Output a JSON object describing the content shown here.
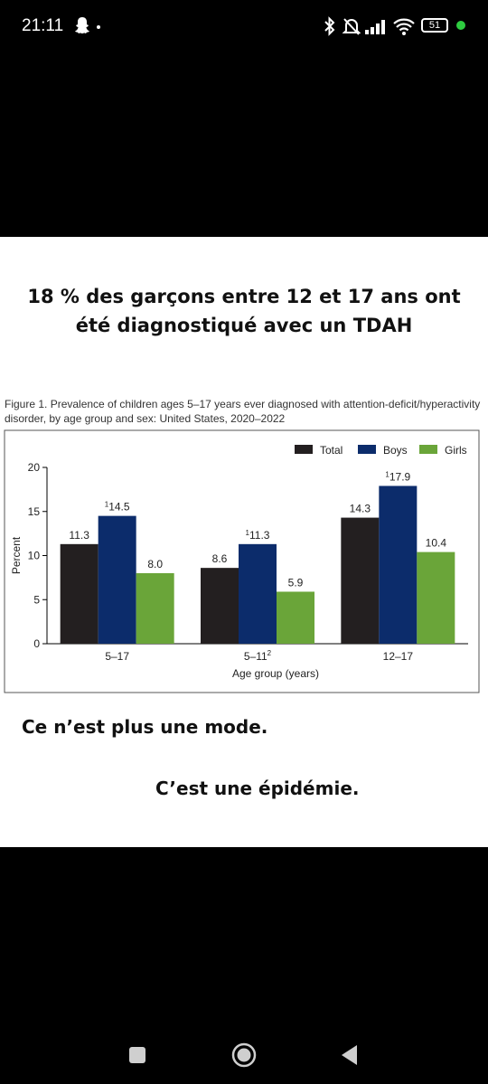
{
  "status_bar": {
    "time": "21:11",
    "battery": "51",
    "icons": [
      "snapchat-icon",
      "dot-icon",
      "bluetooth-icon",
      "mute-icon",
      "signal-icon",
      "wifi-icon",
      "battery-icon",
      "green-dot-icon"
    ]
  },
  "post": {
    "headline_line1": "18 % des garçons entre 12 et 17 ans ont",
    "headline_line2": "été diagnostiqué avec un TDAH",
    "caption_line1": "Figure 1. Prevalence of children ages 5–17 years ever diagnosed with attention-deficit/hyperactivity",
    "caption_line2": "disorder, by age group and sex: United States, 2020–2022",
    "text_line1": "Ce n’est plus une mode.",
    "text_line2": "C’est une épidémie."
  },
  "chart_data": {
    "type": "bar",
    "categories": [
      "5–17",
      "5–11",
      "12–17"
    ],
    "category_superscripts": [
      "",
      "2",
      ""
    ],
    "series": [
      {
        "name": "Total",
        "values": [
          11.3,
          8.6,
          14.3
        ],
        "color": "#231f20",
        "label_superscripts": [
          "",
          "",
          ""
        ]
      },
      {
        "name": "Boys",
        "values": [
          14.5,
          11.3,
          17.9
        ],
        "color": "#0c2c6b",
        "label_superscripts": [
          "1",
          "1",
          "1"
        ]
      },
      {
        "name": "Girls",
        "values": [
          8.0,
          5.9,
          10.4
        ],
        "color": "#6aa539",
        "label_superscripts": [
          "",
          "",
          ""
        ]
      }
    ],
    "xlabel": "Age group (years)",
    "ylabel": "Percent",
    "ylim": [
      0,
      20
    ],
    "yticks": [
      0,
      5,
      10,
      15,
      20
    ],
    "legend_position": "top-right",
    "grid": false
  },
  "nav_bar": {
    "buttons": [
      "recents-button",
      "home-button",
      "back-button"
    ]
  }
}
